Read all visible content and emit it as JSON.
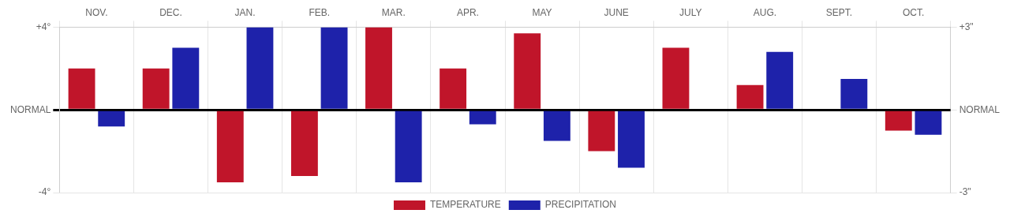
{
  "chart_data": {
    "type": "bar",
    "categories": [
      "NOV.",
      "DEC.",
      "JAN.",
      "FEB.",
      "MAR.",
      "APR.",
      "MAY",
      "JUNE",
      "JULY",
      "AUG.",
      "SEPT.",
      "OCT."
    ],
    "series": [
      {
        "name": "TEMPERATURE",
        "color": "#C0152A",
        "values": [
          2.0,
          2.0,
          -3.5,
          -3.2,
          4.0,
          2.0,
          3.7,
          -2.0,
          3.0,
          1.2,
          0.0,
          -1.0
        ]
      },
      {
        "name": "PRECIPITATION",
        "color": "#1E22AA",
        "values": [
          -0.8,
          3.0,
          4.0,
          4.0,
          -3.5,
          -0.7,
          -1.5,
          -2.8,
          0.0,
          2.8,
          1.5,
          -1.2
        ]
      }
    ],
    "ylim": [
      -4,
      4
    ],
    "yticks": [
      {
        "value": -4,
        "label": "-4°"
      },
      {
        "value": 0,
        "label": "NORMAL"
      },
      {
        "value": 4,
        "label": "+4°"
      }
    ],
    "y2lim": [
      -3,
      3
    ],
    "y2ticks": [
      {
        "value": -3,
        "label": "-3\""
      },
      {
        "value": 0,
        "label": "NORMAL"
      },
      {
        "value": 3,
        "label": "+3\""
      }
    ],
    "grid": true,
    "legend": "bottom"
  }
}
